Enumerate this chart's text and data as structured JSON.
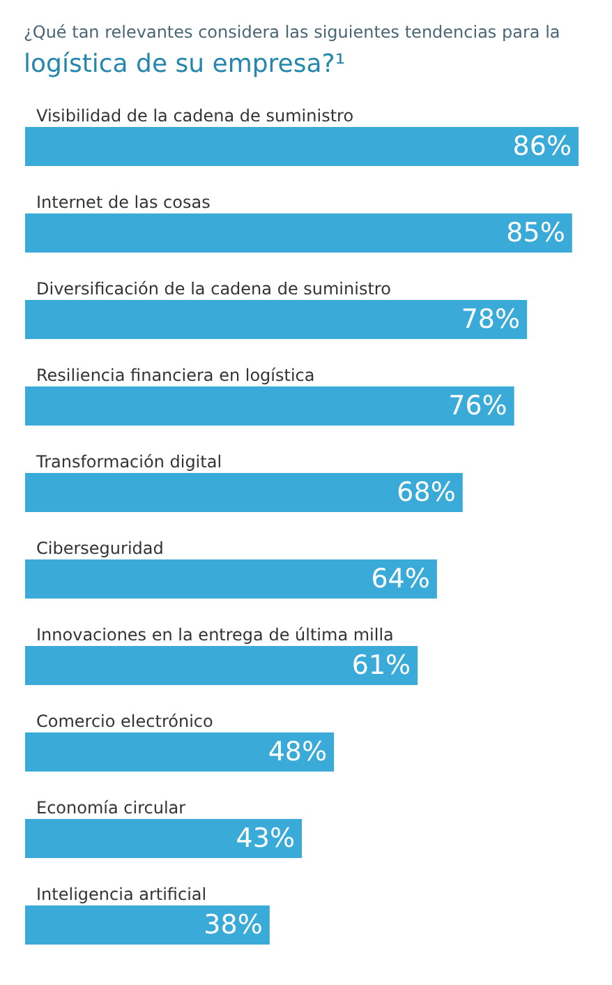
{
  "chart_data": {
    "type": "bar",
    "orientation": "horizontal",
    "title": "¿Qué tan relevantes considera las siguientes tendencias para la",
    "subtitle": "logística de su empresa?¹",
    "categories": [
      "Visibilidad de la cadena de suministro",
      "Internet de las cosas",
      "Diversificación de la cadena de suministro",
      "Resiliencia financiera en logística",
      "Transformación digital",
      "Ciberseguridad",
      "Innovaciones en la entrega de última milla",
      "Comercio electrónico",
      "Economía circular",
      "Inteligencia artificial"
    ],
    "values": [
      86,
      85,
      78,
      76,
      68,
      64,
      61,
      48,
      43,
      38
    ],
    "value_labels": [
      "86%",
      "85%",
      "78%",
      "76%",
      "68%",
      "64%",
      "61%",
      "48%",
      "43%",
      "38%"
    ],
    "color": "#3aaad8"
  }
}
